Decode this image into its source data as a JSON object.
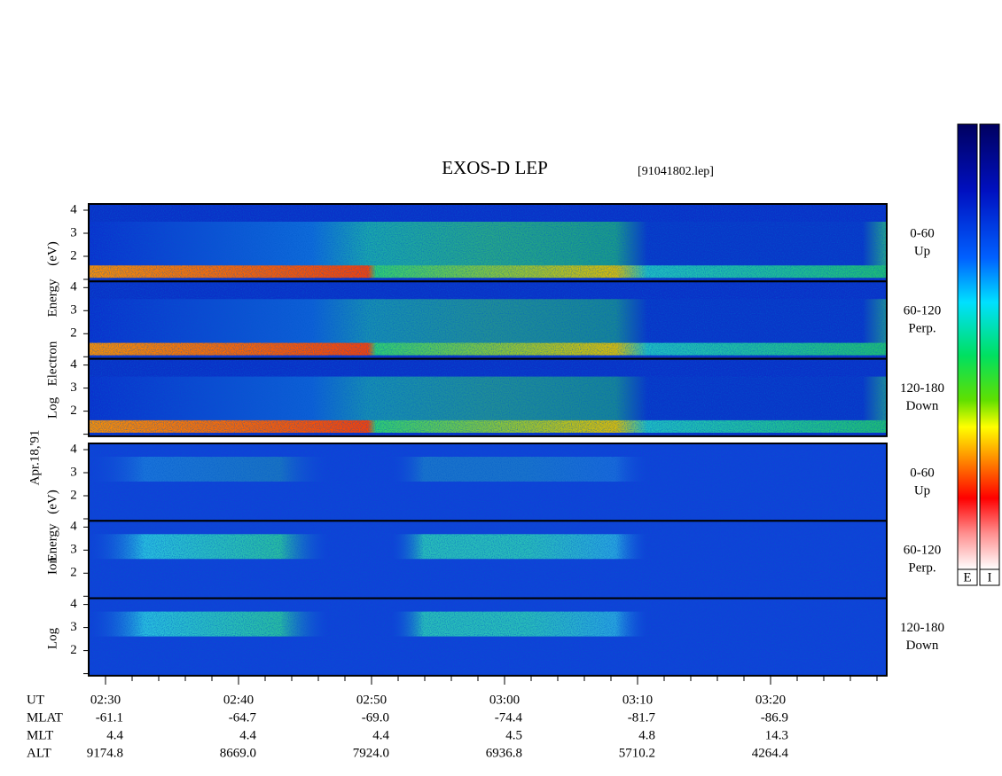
{
  "header": {
    "title": "EXOS-D LEP",
    "file": "[91041802.lep]"
  },
  "date": "Apr.18,'91",
  "electron_axis": [
    "Log",
    "Electron",
    "Energy",
    "(eV)"
  ],
  "ion_axis": [
    "Log",
    "Ion",
    "Energy",
    "(eV)"
  ],
  "panels": [
    {
      "species": "electron",
      "channel": "0-60",
      "direction": "Up",
      "yticks": [
        "4",
        "3",
        "2"
      ]
    },
    {
      "species": "electron",
      "channel": "60-120",
      "direction": "Perp.",
      "yticks": [
        "4",
        "3",
        "2"
      ]
    },
    {
      "species": "electron",
      "channel": "120-180",
      "direction": "Down",
      "yticks": [
        "4",
        "3",
        "2"
      ]
    },
    {
      "species": "ion",
      "channel": "0-60",
      "direction": "Up",
      "yticks": [
        "4",
        "3",
        "2"
      ]
    },
    {
      "species": "ion",
      "channel": "60-120",
      "direction": "Perp.",
      "yticks": [
        "4",
        "3",
        "2"
      ]
    },
    {
      "species": "ion",
      "channel": "120-180",
      "direction": "Down",
      "yticks": [
        "4",
        "3",
        "2"
      ]
    }
  ],
  "time_rows": [
    {
      "name": "UT",
      "values": [
        "02:30",
        "02:40",
        "02:50",
        "03:00",
        "03:10",
        "03:20"
      ]
    },
    {
      "name": "MLAT",
      "values": [
        "-61.1",
        "-64.7",
        "-69.0",
        "-74.4",
        "-81.7",
        "-86.9"
      ]
    },
    {
      "name": "MLT",
      "values": [
        "4.4",
        "4.4",
        "4.4",
        "4.5",
        "4.8",
        "14.3"
      ]
    },
    {
      "name": "ALT",
      "values": [
        "9174.8",
        "8669.0",
        "7924.0",
        "6936.8",
        "5710.2",
        "4264.4"
      ]
    }
  ],
  "colorbars": [
    "E",
    "I"
  ]
}
